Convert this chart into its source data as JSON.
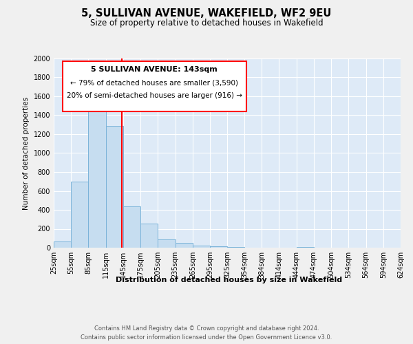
{
  "title": "5, SULLIVAN AVENUE, WAKEFIELD, WF2 9EU",
  "subtitle": "Size of property relative to detached houses in Wakefield",
  "xlabel": "Distribution of detached houses by size in Wakefield",
  "ylabel": "Number of detached properties",
  "bar_color": "#c6ddf0",
  "bar_edge_color": "#7ab3d9",
  "bg_color": "#deeaf7",
  "fig_bg_color": "#f0f0f0",
  "grid_color": "#ffffff",
  "red_line_x": 143,
  "annotation_title": "5 SULLIVAN AVENUE: 143sqm",
  "annotation_line1": "← 79% of detached houses are smaller (3,590)",
  "annotation_line2": "20% of semi-detached houses are larger (916) →",
  "bin_edges": [
    25,
    55,
    85,
    115,
    145,
    175,
    205,
    235,
    265,
    295,
    325,
    354,
    384,
    414,
    444,
    474,
    504,
    534,
    564,
    594,
    624
  ],
  "bar_heights": [
    65,
    695,
    1635,
    1285,
    435,
    255,
    90,
    50,
    25,
    15,
    5,
    0,
    0,
    0,
    10,
    0,
    0,
    0,
    0,
    0
  ],
  "ylim": [
    0,
    2000
  ],
  "yticks": [
    0,
    200,
    400,
    600,
    800,
    1000,
    1200,
    1400,
    1600,
    1800,
    2000
  ],
  "xlim": [
    25,
    624
  ],
  "footer_line1": "Contains HM Land Registry data © Crown copyright and database right 2024.",
  "footer_line2": "Contains public sector information licensed under the Open Government Licence v3.0."
}
